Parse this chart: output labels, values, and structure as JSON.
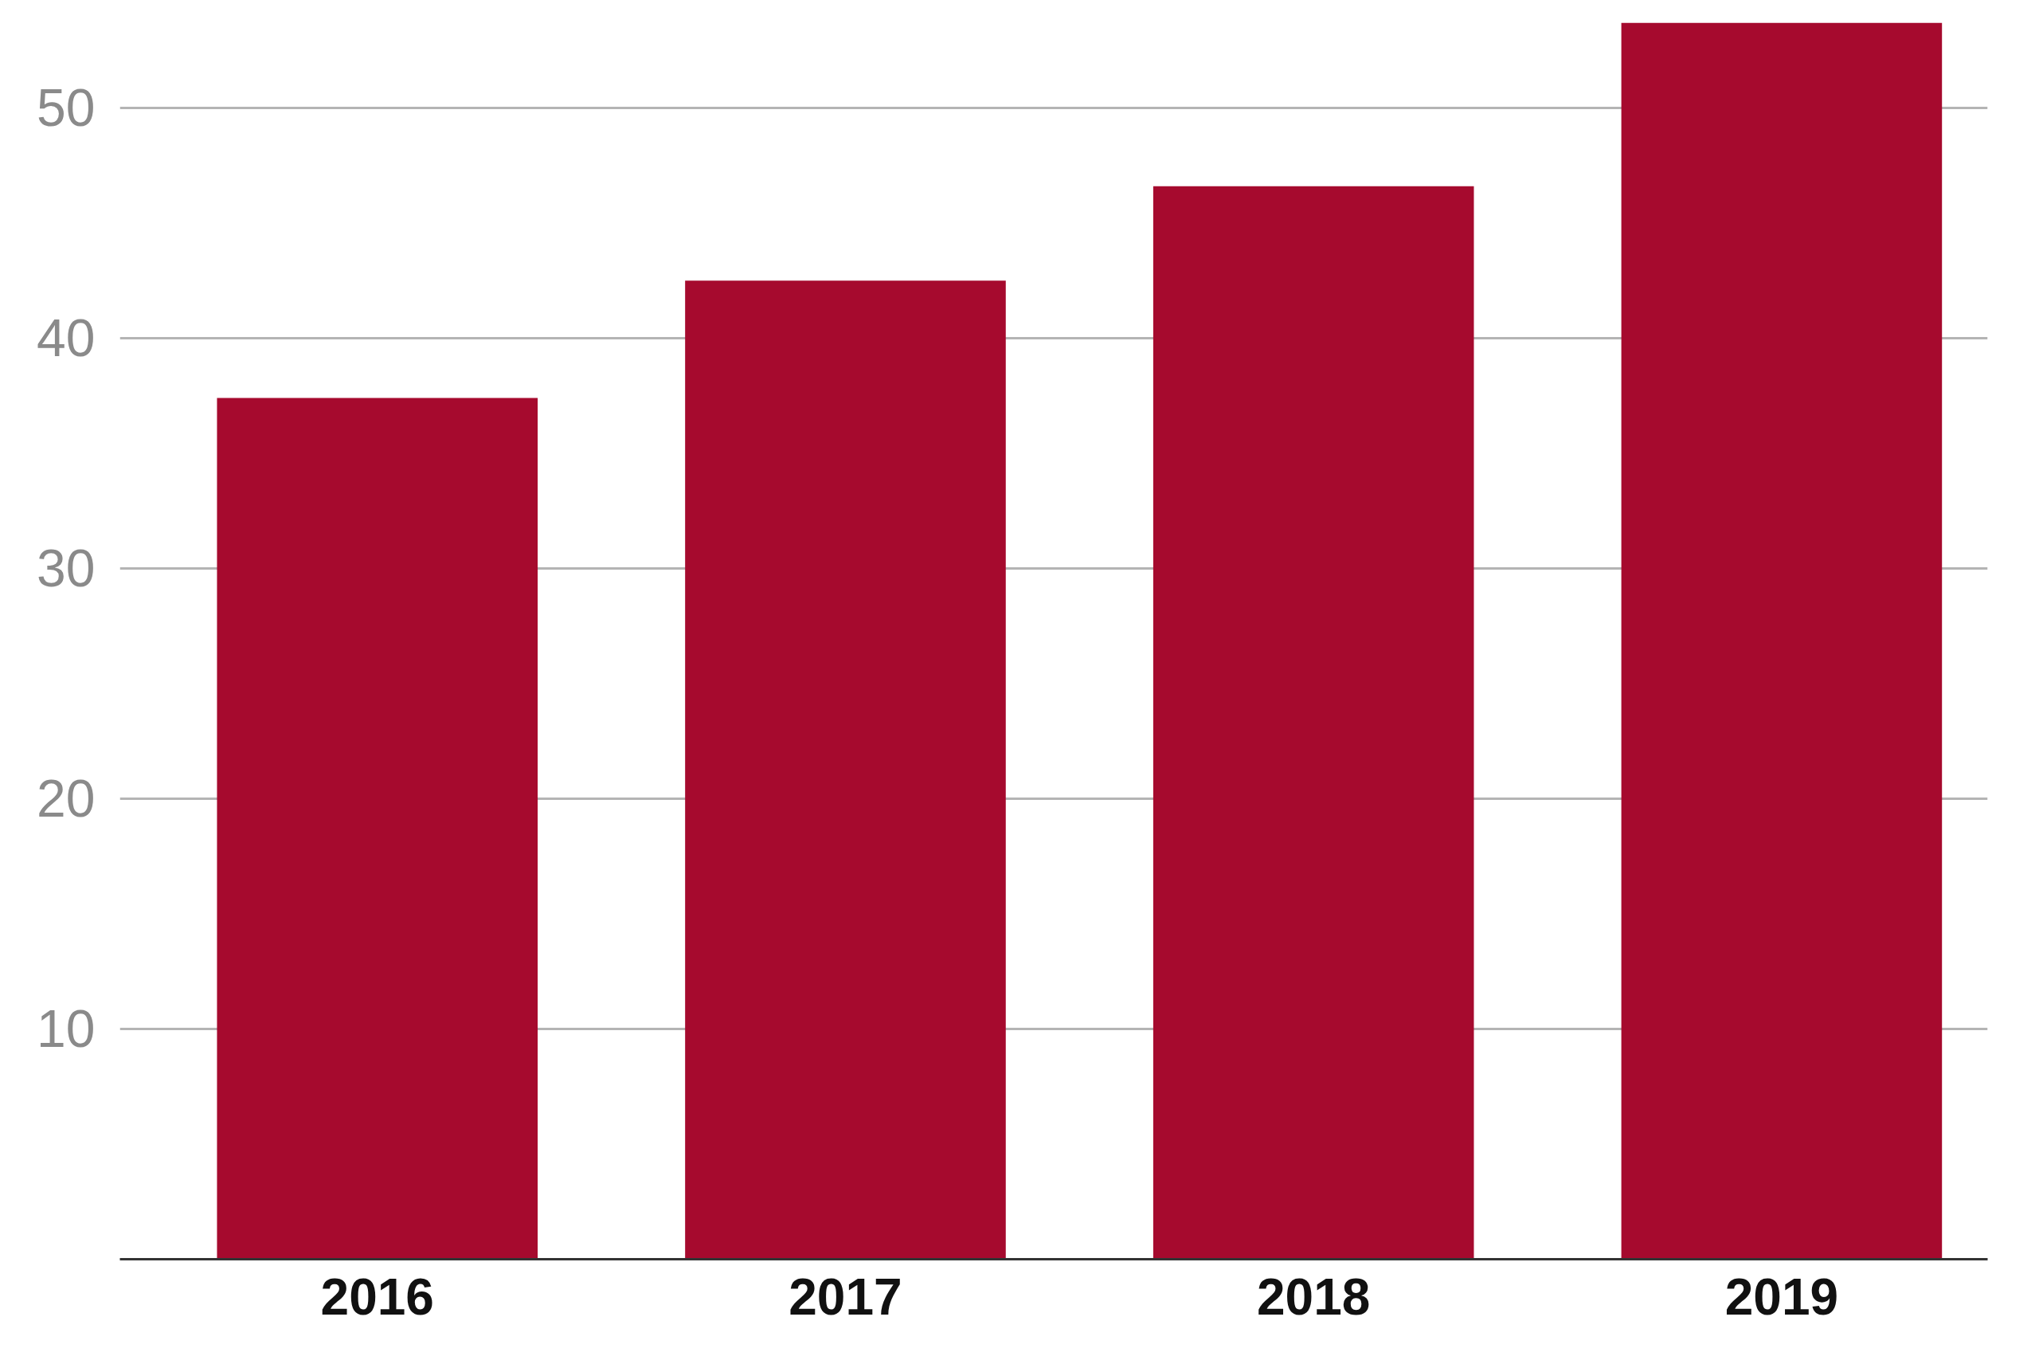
{
  "chart_data": {
    "type": "bar",
    "categories": [
      "2016",
      "2017",
      "2018",
      "2019"
    ],
    "values": [
      37.4,
      42.5,
      46.6,
      53.7
    ],
    "color": "#a60a2e",
    "ylim": [
      0,
      53.7
    ],
    "yticks": [
      10,
      20,
      30,
      40,
      50
    ],
    "grid": "y"
  }
}
